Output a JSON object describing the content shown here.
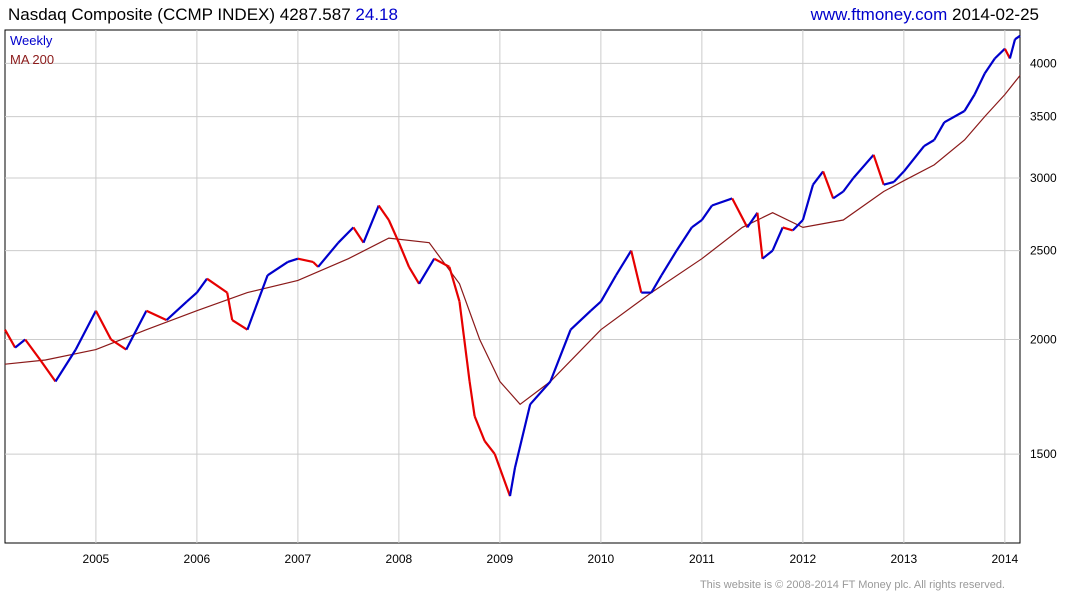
{
  "header": {
    "title": "Nasdaq Composite (CCMP INDEX) 4287.587",
    "change": "24.18",
    "site": "www.ftmoney.com",
    "date": "2014-02-25"
  },
  "footer": {
    "copyright": "This website is © 2008-2014 FT Money plc. All rights reserved."
  },
  "colors": {
    "up": "#0000cc",
    "down": "#e60000",
    "ma": "#8b1a1a",
    "grid": "#cccccc",
    "axis": "#000000"
  },
  "chart_data": {
    "type": "line",
    "title": "Nasdaq Composite (CCMP INDEX) 4287.587",
    "xlabel": "",
    "ylabel": "",
    "ylim": [
      1200,
      4350
    ],
    "yscale": "log",
    "x_range": [
      2004.1,
      2014.15
    ],
    "x_ticks": [
      "2005",
      "2006",
      "2007",
      "2008",
      "2009",
      "2010",
      "2011",
      "2012",
      "2013",
      "2014"
    ],
    "y_ticks": [
      1500,
      2000,
      2500,
      3000,
      3500,
      4000
    ],
    "grid": true,
    "legend": {
      "placement": "top-left",
      "entries": [
        "Weekly",
        "MA 200"
      ]
    },
    "series": [
      {
        "name": "Weekly",
        "x": [
          2004.1,
          2004.2,
          2004.3,
          2004.45,
          2004.6,
          2004.8,
          2005.0,
          2005.15,
          2005.3,
          2005.5,
          2005.7,
          2005.9,
          2006.0,
          2006.1,
          2006.3,
          2006.35,
          2006.5,
          2006.7,
          2006.9,
          2007.0,
          2007.15,
          2007.2,
          2007.4,
          2007.55,
          2007.65,
          2007.8,
          2007.9,
          2008.0,
          2008.1,
          2008.2,
          2008.35,
          2008.5,
          2008.6,
          2008.7,
          2008.75,
          2008.85,
          2008.95,
          2009.1,
          2009.15,
          2009.3,
          2009.5,
          2009.7,
          2009.9,
          2010.0,
          2010.15,
          2010.3,
          2010.4,
          2010.5,
          2010.6,
          2010.75,
          2010.9,
          2011.0,
          2011.1,
          2011.3,
          2011.45,
          2011.55,
          2011.6,
          2011.7,
          2011.8,
          2011.9,
          2012.0,
          2012.1,
          2012.2,
          2012.3,
          2012.4,
          2012.5,
          2012.7,
          2012.8,
          2012.9,
          2013.0,
          2013.2,
          2013.3,
          2013.4,
          2013.6,
          2013.7,
          2013.8,
          2013.9,
          2014.0,
          2014.05,
          2014.1,
          2014.15
        ],
        "values": [
          2050,
          1960,
          2000,
          1900,
          1800,
          1950,
          2150,
          2000,
          1950,
          2150,
          2100,
          2200,
          2250,
          2330,
          2250,
          2100,
          2050,
          2350,
          2430,
          2450,
          2430,
          2400,
          2550,
          2650,
          2550,
          2800,
          2700,
          2550,
          2400,
          2300,
          2450,
          2400,
          2200,
          1800,
          1650,
          1550,
          1500,
          1350,
          1450,
          1700,
          1800,
          2050,
          2150,
          2200,
          2350,
          2500,
          2250,
          2250,
          2350,
          2500,
          2650,
          2700,
          2800,
          2850,
          2650,
          2750,
          2450,
          2500,
          2650,
          2630,
          2700,
          2950,
          3050,
          2850,
          2900,
          3000,
          3180,
          2950,
          2970,
          3050,
          3250,
          3300,
          3450,
          3550,
          3700,
          3900,
          4050,
          4150,
          4050,
          4250,
          4287
        ]
      },
      {
        "name": "MA 200",
        "x": [
          2004.1,
          2004.5,
          2005.0,
          2005.5,
          2006.0,
          2006.5,
          2007.0,
          2007.5,
          2007.9,
          2008.3,
          2008.6,
          2008.8,
          2009.0,
          2009.2,
          2009.5,
          2010.0,
          2010.5,
          2011.0,
          2011.4,
          2011.7,
          2012.0,
          2012.4,
          2012.8,
          2013.0,
          2013.3,
          2013.6,
          2013.8,
          2014.0,
          2014.15
        ],
        "values": [
          1880,
          1900,
          1950,
          2050,
          2150,
          2250,
          2320,
          2450,
          2580,
          2550,
          2300,
          2000,
          1800,
          1700,
          1800,
          2050,
          2250,
          2450,
          2650,
          2750,
          2650,
          2700,
          2900,
          2980,
          3100,
          3300,
          3500,
          3700,
          3880
        ]
      }
    ]
  }
}
